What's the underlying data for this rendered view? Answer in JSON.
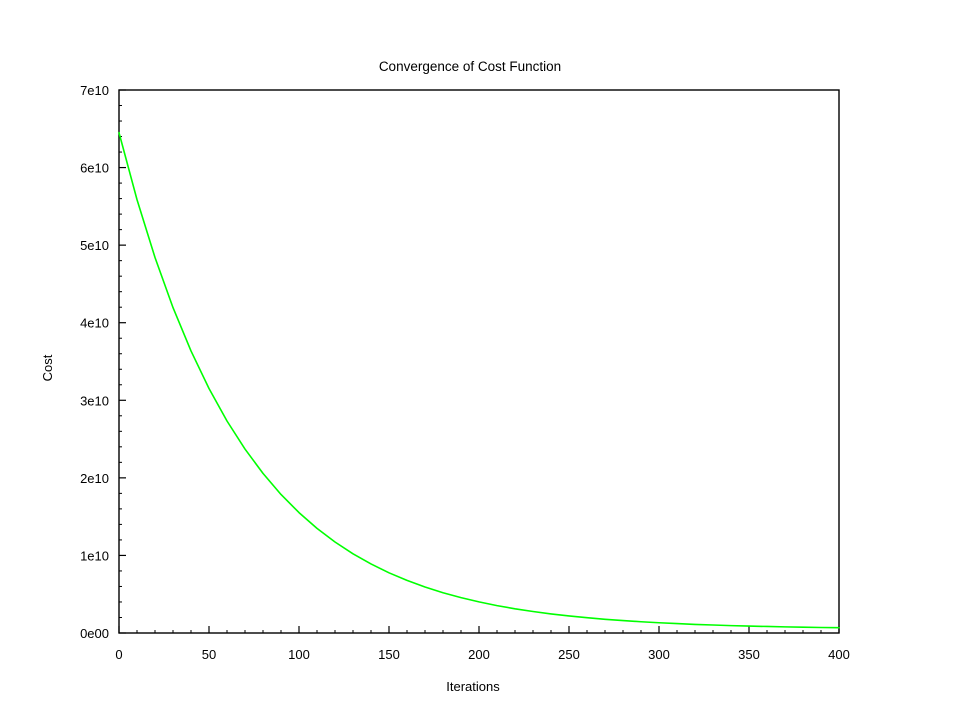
{
  "chart_data": {
    "type": "line",
    "title": "Convergence of Cost Function",
    "xlabel": "Iterations",
    "ylabel": "Cost",
    "xlim": [
      0,
      400
    ],
    "ylim": [
      0,
      70000000000
    ],
    "grid": false,
    "legend": "none",
    "x_ticks": [
      0,
      50,
      100,
      150,
      200,
      250,
      300,
      350,
      400
    ],
    "x_tick_labels": [
      "0",
      "50",
      "100",
      "150",
      "200",
      "250",
      "300",
      "350",
      "400"
    ],
    "y_ticks": [
      0,
      10000000000,
      20000000000,
      30000000000,
      40000000000,
      50000000000,
      60000000000,
      70000000000
    ],
    "y_tick_labels": [
      "0e00",
      "1e10",
      "2e10",
      "3e10",
      "4e10",
      "5e10",
      "6e10",
      "7e10"
    ],
    "series": [
      {
        "color": "#00ff00",
        "x": [
          0,
          10,
          20,
          30,
          40,
          50,
          60,
          70,
          80,
          90,
          100,
          110,
          120,
          130,
          140,
          150,
          160,
          170,
          180,
          190,
          200,
          210,
          220,
          230,
          240,
          250,
          260,
          270,
          280,
          290,
          300,
          310,
          320,
          330,
          340,
          350,
          360,
          370,
          380,
          390,
          400
        ],
        "y": [
          64500000000,
          55870000000,
          48410000000,
          41950000000,
          36360000000,
          31520000000,
          27330000000,
          23710000000,
          20580000000,
          17860000000,
          15520000000,
          13490000000,
          11730000000,
          10210000000,
          8900000000,
          7760000000,
          6780000000,
          5930000000,
          5190000000,
          4560000000,
          4010000000,
          3530000000,
          3120000000,
          2770000000,
          2460000000,
          2200000000,
          1970000000,
          1770000000,
          1600000000,
          1450000000,
          1320000000,
          1210000000,
          1110000000,
          1030000000,
          950000000,
          890000000,
          840000000,
          790000000,
          750000000,
          710000000,
          680000000
        ]
      }
    ]
  }
}
